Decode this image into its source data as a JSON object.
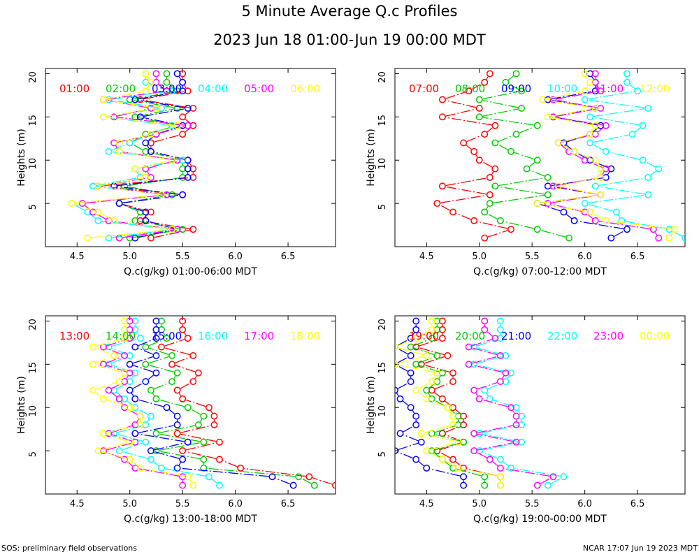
{
  "title": "5 Minute Average Q.c Profiles",
  "subtitle": "2023 Jun 18 01:00-Jun 19 00:00 MDT",
  "footer_left": "SOS: preliminary field observations",
  "footer_right": "NCAR 17:07 Jun 19 2023 MDT",
  "series_colors": [
    "#ff0000",
    "#00cc00",
    "#0000ff",
    "#00ffff",
    "#ff00ff",
    "#ffff00"
  ],
  "chart_data": [
    {
      "type": "line",
      "xlabel": "Q.c(g/kg) 01:00-06:00 MDT",
      "ylabel": "Heights (m)",
      "xlim": [
        4.2,
        6.95
      ],
      "ylim": [
        0,
        20.6
      ],
      "xticks": [
        "4.5",
        "5.0",
        "5.5",
        "6.0",
        "6.5"
      ],
      "yticks": [
        "5",
        "10",
        "15",
        "20"
      ],
      "heights": [
        1,
        2,
        3,
        4,
        5,
        6,
        7,
        8,
        9,
        10,
        11,
        12,
        13,
        14,
        15,
        16,
        17,
        18,
        19,
        20
      ],
      "series": [
        {
          "name": "01:00",
          "values": [
            5.2,
            5.6,
            5.1,
            5.2,
            4.9,
            5.5,
            4.7,
            5.6,
            5.6,
            5.55,
            5.2,
            5.2,
            5.5,
            5.6,
            5.5,
            5.6,
            5.1,
            5.55,
            5.5,
            5.5
          ]
        },
        {
          "name": "02:00",
          "values": [
            5.0,
            5.5,
            5.05,
            5.1,
            4.9,
            5.4,
            4.95,
            5.5,
            5.5,
            5.5,
            5.15,
            5.0,
            5.15,
            5.45,
            5.05,
            5.45,
            5.0,
            5.45,
            5.35,
            5.35
          ]
        },
        {
          "name": "03:00",
          "values": [
            5.05,
            5.45,
            5.15,
            5.15,
            4.9,
            5.5,
            4.85,
            5.55,
            5.55,
            5.55,
            5.2,
            5.15,
            5.25,
            5.5,
            5.1,
            5.55,
            5.05,
            5.5,
            5.5,
            5.45
          ]
        },
        {
          "name": "04:00",
          "values": [
            4.8,
            5.4,
            4.7,
            4.6,
            4.45,
            5.35,
            4.65,
            5.1,
            5.05,
            5.5,
            4.8,
            5.0,
            5.2,
            5.4,
            4.75,
            5.3,
            4.8,
            5.4,
            5.15,
            5.15
          ]
        },
        {
          "name": "05:00",
          "values": [
            4.9,
            5.45,
            4.8,
            4.65,
            4.55,
            5.35,
            4.7,
            5.2,
            5.15,
            5.45,
            4.9,
            4.85,
            5.25,
            5.55,
            4.85,
            5.2,
            4.75,
            5.35,
            5.25,
            5.25
          ]
        },
        {
          "name": "06:00",
          "values": [
            4.6,
            5.4,
            4.85,
            4.7,
            4.45,
            5.3,
            4.7,
            5.15,
            5.05,
            5.4,
            4.9,
            4.9,
            5.2,
            5.45,
            4.75,
            5.25,
            4.75,
            5.15,
            5.2,
            5.15
          ]
        }
      ]
    },
    {
      "type": "line",
      "xlabel": "Q.c(g/kg) 07:00-12:00 MDT",
      "ylabel": "Heights (m)",
      "xlim": [
        4.2,
        6.95
      ],
      "ylim": [
        0,
        20.6
      ],
      "xticks": [
        "4.5",
        "5.0",
        "5.5",
        "6.0",
        "6.5"
      ],
      "yticks": [
        "5",
        "10",
        "15",
        "20"
      ],
      "heights": [
        1,
        2,
        3,
        4,
        5,
        6,
        7,
        8,
        9,
        10,
        11,
        12,
        13,
        14,
        15,
        16,
        17,
        18,
        19,
        20
      ],
      "series": [
        {
          "name": "07:00",
          "values": [
            5.05,
            5.3,
            4.95,
            4.75,
            4.6,
            5.1,
            4.65,
            5.1,
            5.15,
            5.0,
            4.95,
            4.85,
            5.05,
            5.15,
            4.65,
            5.0,
            4.65,
            4.9,
            5.05,
            5.1
          ]
        },
        {
          "name": "08:00",
          "values": [
            5.85,
            5.55,
            5.2,
            5.05,
            5.1,
            5.65,
            5.15,
            5.65,
            5.45,
            5.55,
            5.3,
            5.15,
            5.35,
            5.55,
            5.0,
            5.4,
            5.0,
            5.4,
            5.25,
            5.35
          ]
        },
        {
          "name": "09:00",
          "values": [
            6.25,
            6.4,
            5.9,
            5.8,
            5.55,
            6.15,
            5.65,
            6.2,
            6.25,
            6.05,
            5.9,
            5.8,
            6.05,
            6.15,
            5.7,
            6.1,
            5.65,
            6.1,
            6.1,
            6.05
          ]
        },
        {
          "name": "10:00",
          "values": [
            6.95,
            6.8,
            6.35,
            6.3,
            6.0,
            6.6,
            6.1,
            6.6,
            6.7,
            6.55,
            6.2,
            6.05,
            6.45,
            6.55,
            6.05,
            6.6,
            6.0,
            6.5,
            6.4,
            6.4
          ]
        },
        {
          "name": "11:00",
          "values": [
            6.7,
            6.65,
            6.1,
            6.0,
            5.65,
            6.15,
            5.7,
            6.15,
            6.2,
            6.0,
            5.85,
            5.75,
            6.1,
            6.2,
            5.7,
            6.15,
            5.7,
            6.15,
            6.1,
            6.1
          ]
        },
        {
          "name": "12:00",
          "values": [
            6.8,
            6.85,
            6.2,
            6.05,
            5.55,
            6.15,
            5.75,
            6.15,
            6.15,
            6.1,
            5.9,
            5.75,
            6.05,
            6.1,
            5.65,
            6.1,
            5.6,
            6.0,
            6.05,
            6.0
          ]
        }
      ]
    },
    {
      "type": "line",
      "xlabel": "Q.c(g/kg) 13:00-18:00 MDT",
      "ylabel": "Heights (m)",
      "xlim": [
        4.2,
        6.95
      ],
      "ylim": [
        0,
        20.6
      ],
      "xticks": [
        "4.5",
        "5.0",
        "5.5",
        "6.0",
        "6.5"
      ],
      "yticks": [
        "5",
        "10",
        "15",
        "20"
      ],
      "heights": [
        1,
        2,
        3,
        4,
        5,
        6,
        7,
        8,
        9,
        10,
        11,
        12,
        13,
        14,
        15,
        16,
        17,
        18,
        19,
        20
      ],
      "series": [
        {
          "name": "13:00",
          "values": [
            6.95,
            6.7,
            6.05,
            5.85,
            5.5,
            5.85,
            5.45,
            5.8,
            5.8,
            5.75,
            5.5,
            5.45,
            5.6,
            5.65,
            5.4,
            5.6,
            5.3,
            5.55,
            5.5,
            5.5
          ]
        },
        {
          "name": "14:00",
          "values": [
            6.75,
            6.6,
            5.7,
            5.7,
            5.25,
            5.7,
            5.25,
            5.65,
            5.7,
            5.55,
            5.25,
            5.2,
            5.4,
            5.45,
            5.15,
            5.4,
            5.15,
            5.35,
            5.3,
            5.3
          ]
        },
        {
          "name": "15:00",
          "values": [
            6.55,
            6.35,
            5.45,
            5.5,
            5.2,
            5.55,
            5.05,
            5.45,
            5.45,
            5.35,
            5.05,
            5.0,
            5.15,
            5.25,
            5.0,
            5.25,
            5.05,
            5.25,
            5.25,
            5.25
          ]
        },
        {
          "name": "16:00",
          "values": [
            5.85,
            5.75,
            5.3,
            5.2,
            4.9,
            5.15,
            4.85,
            5.15,
            5.2,
            5.05,
            4.95,
            4.85,
            5.0,
            5.05,
            4.8,
            5.0,
            4.8,
            5.1,
            5.05,
            5.05
          ]
        },
        {
          "name": "17:00",
          "values": [
            5.5,
            5.5,
            5.05,
            4.95,
            4.75,
            5.05,
            4.8,
            5.05,
            5.1,
            4.95,
            4.9,
            4.8,
            4.95,
            5.0,
            4.75,
            4.95,
            4.75,
            5.0,
            5.0,
            5.0
          ]
        },
        {
          "name": "18:00",
          "values": [
            5.6,
            5.55,
            5.1,
            5.0,
            4.7,
            5.0,
            4.75,
            5.1,
            5.1,
            5.0,
            4.75,
            4.65,
            4.9,
            4.95,
            4.65,
            4.85,
            4.65,
            4.95,
            4.95,
            4.95
          ]
        }
      ]
    },
    {
      "type": "line",
      "xlabel": "Q.c(g/kg) 19:00-00:00 MDT",
      "ylabel": "Heights (m)",
      "xlim": [
        4.2,
        6.95
      ],
      "ylim": [
        0,
        20.6
      ],
      "xticks": [
        "4.5",
        "5.0",
        "5.5",
        "6.0",
        "6.5"
      ],
      "yticks": [
        "5",
        "10",
        "15",
        "20"
      ],
      "heights": [
        1,
        2,
        3,
        4,
        5,
        6,
        7,
        8,
        9,
        10,
        11,
        12,
        13,
        14,
        15,
        16,
        17,
        18,
        19,
        20
      ],
      "series": [
        {
          "name": "19:00",
          "values": [
            5.2,
            5.2,
            4.85,
            4.75,
            4.6,
            4.85,
            4.65,
            4.85,
            4.85,
            4.75,
            4.65,
            4.55,
            4.75,
            4.75,
            4.45,
            4.7,
            4.4,
            4.65,
            4.65,
            4.65
          ]
        },
        {
          "name": "20:00",
          "values": [
            5.05,
            5.05,
            4.75,
            4.65,
            4.55,
            4.85,
            4.55,
            4.8,
            4.8,
            4.7,
            4.55,
            4.5,
            4.6,
            4.65,
            4.4,
            4.6,
            4.35,
            4.55,
            4.6,
            4.6
          ]
        },
        {
          "name": "21:00",
          "values": [
            4.85,
            4.85,
            4.5,
            4.4,
            4.2,
            4.45,
            4.25,
            4.4,
            4.4,
            4.35,
            4.25,
            4.2,
            4.35,
            4.35,
            4.2,
            4.35,
            4.2,
            4.35,
            4.4,
            4.4
          ]
        },
        {
          "name": "22:00",
          "values": [
            5.65,
            5.8,
            5.3,
            5.2,
            5.0,
            5.4,
            5.0,
            5.4,
            5.4,
            5.35,
            5.1,
            5.05,
            5.25,
            5.3,
            4.95,
            5.25,
            4.95,
            5.2,
            5.2,
            5.2
          ]
        },
        {
          "name": "23:00",
          "values": [
            5.55,
            5.7,
            5.2,
            5.1,
            4.95,
            5.35,
            4.95,
            5.35,
            5.35,
            5.3,
            5.0,
            4.95,
            5.2,
            5.25,
            4.9,
            5.2,
            4.9,
            5.15,
            5.05,
            5.05
          ]
        },
        {
          "name": "00:00",
          "values": [
            5.2,
            5.2,
            4.8,
            4.65,
            4.5,
            4.8,
            4.45,
            4.75,
            4.75,
            4.7,
            4.5,
            4.4,
            4.55,
            4.6,
            4.2,
            4.5,
            4.2,
            4.4,
            4.55,
            4.55
          ]
        }
      ]
    }
  ]
}
